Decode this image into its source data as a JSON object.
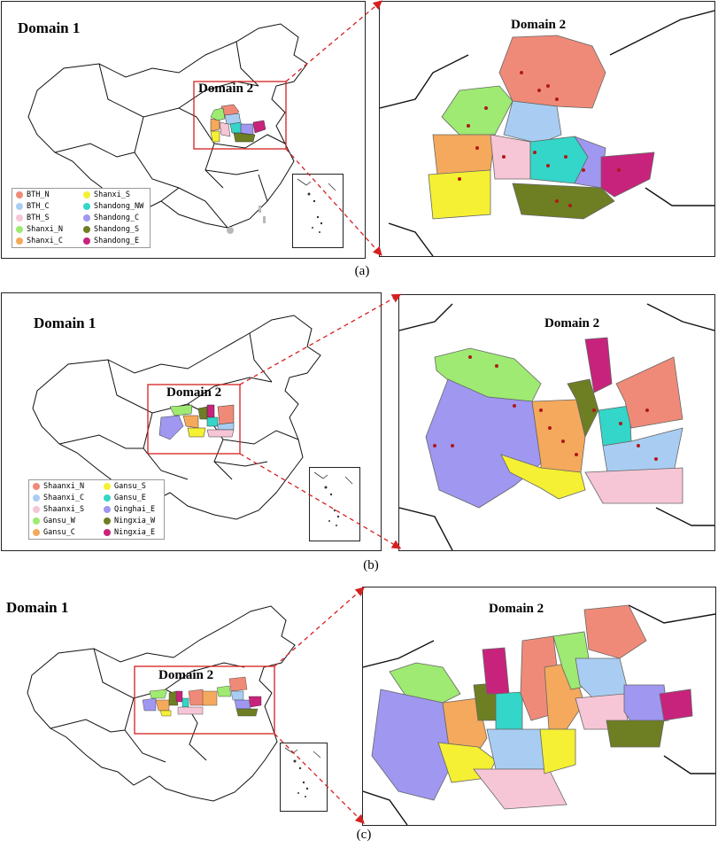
{
  "panels": [
    {
      "caption": "(a)",
      "domain1_label": "Domain 1",
      "domain2_label": "Domain 2",
      "detail_title": "Domain 2",
      "legend": [
        {
          "label": "BTH_N",
          "color": "#f08a78"
        },
        {
          "label": "Shanxi_S",
          "color": "#f5f033"
        },
        {
          "label": "BTH_C",
          "color": "#a9cdf2"
        },
        {
          "label": "Shandong_NW",
          "color": "#33d6c8"
        },
        {
          "label": "BTH_S",
          "color": "#f6c6d6"
        },
        {
          "label": "Shandong_C",
          "color": "#9f97f0"
        },
        {
          "label": "Shanxi_N",
          "color": "#9eea72"
        },
        {
          "label": "Shandong_S",
          "color": "#6d7f22"
        },
        {
          "label": "Shanxi_C",
          "color": "#f4a95c"
        },
        {
          "label": "Shandong_E",
          "color": "#c8237c"
        }
      ]
    },
    {
      "caption": "(b)",
      "domain1_label": "Domain 1",
      "domain2_label": "Domain 2",
      "detail_title": "Domain 2",
      "legend": [
        {
          "label": "Shaanxi_N",
          "color": "#f08a78"
        },
        {
          "label": "Gansu_S",
          "color": "#f5f033"
        },
        {
          "label": "Shaanxi_C",
          "color": "#a9cdf2"
        },
        {
          "label": "Gansu_E",
          "color": "#33d6c8"
        },
        {
          "label": "Shaanxi_S",
          "color": "#f6c6d6"
        },
        {
          "label": "Qinghai_E",
          "color": "#9f97f0"
        },
        {
          "label": "Gansu_W",
          "color": "#9eea72"
        },
        {
          "label": "Ningxia_W",
          "color": "#6d7f22"
        },
        {
          "label": "Gansu_C",
          "color": "#f4a95c"
        },
        {
          "label": "Ningxia_E",
          "color": "#c8237c"
        }
      ]
    },
    {
      "caption": "(c)",
      "domain1_label": "Domain 1",
      "domain2_label": "Domain 2",
      "detail_title": "Domain 2"
    }
  ],
  "colors": {
    "boundary_box": "#d42020",
    "site_marker": "#b01818",
    "region_outline": "#7a7a7a"
  }
}
